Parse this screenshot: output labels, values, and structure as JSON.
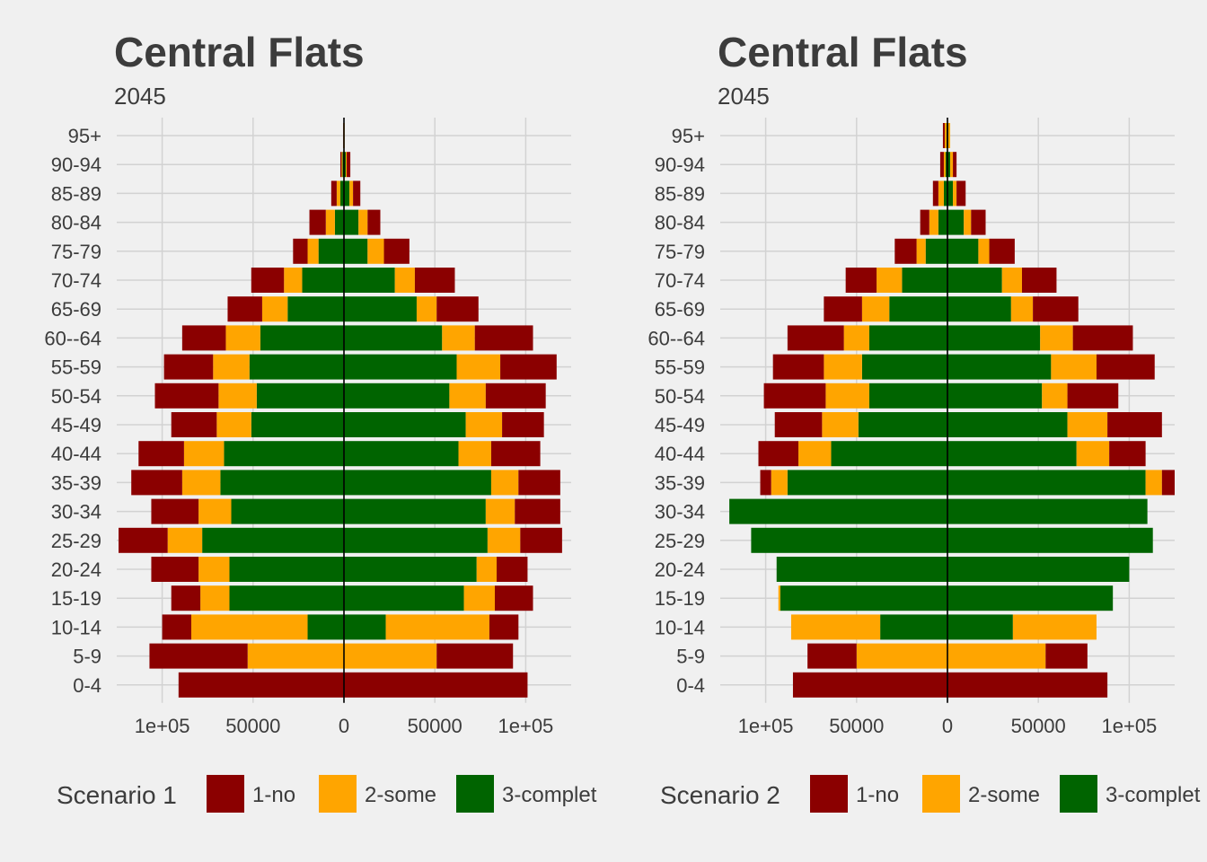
{
  "colors": {
    "background": "#f0f0f0",
    "grid": "#d2d2d2",
    "text": "#3c3c3c",
    "zero_line": "#000000",
    "1-no": "#8b0000",
    "2-some": "#ffa500",
    "3-complet": "#006400"
  },
  "chart_data": [
    {
      "type": "bar",
      "orientation": "horizontal-diverging",
      "title": "Central Flats",
      "subtitle": "2045",
      "legend_title": "Scenario 1",
      "legend_position": "bottom",
      "grid": true,
      "xlim": [
        -125000,
        125000
      ],
      "x_ticks": [
        -100000,
        -50000,
        0,
        50000,
        100000
      ],
      "x_tick_labels": [
        "1e+05",
        "50000",
        "0",
        "50000",
        "1e+05"
      ],
      "categories": [
        "0-4",
        "5-9",
        "10-14",
        "15-19",
        "20-24",
        "25-29",
        "30-34",
        "35-39",
        "40-44",
        "45-49",
        "50-54",
        "55-59",
        "60--64",
        "65-69",
        "70-74",
        "75-79",
        "80-84",
        "85-89",
        "90-94",
        "95+"
      ],
      "series": [
        {
          "name": "3-complet",
          "color": "#006400",
          "left": [
            0,
            0,
            20000,
            63000,
            63000,
            78000,
            62000,
            68000,
            66000,
            51000,
            48000,
            52000,
            46000,
            31000,
            23000,
            14000,
            5000,
            2000,
            800,
            200
          ],
          "right": [
            0,
            0,
            23000,
            66000,
            73000,
            79000,
            78000,
            81000,
            63000,
            67000,
            58000,
            62000,
            54000,
            40000,
            28000,
            13000,
            8000,
            3000,
            1000,
            200
          ]
        },
        {
          "name": "2-some",
          "color": "#ffa500",
          "left": [
            0,
            53000,
            64000,
            16000,
            17000,
            19000,
            18000,
            21000,
            22000,
            19000,
            21000,
            20000,
            19000,
            14000,
            10000,
            6000,
            5000,
            2000,
            500,
            200
          ],
          "right": [
            0,
            51000,
            57000,
            17000,
            11000,
            18000,
            16000,
            15000,
            18000,
            20000,
            20000,
            24000,
            18000,
            11000,
            11000,
            9000,
            5000,
            2000,
            500,
            200
          ]
        },
        {
          "name": "1-no",
          "color": "#8b0000",
          "left": [
            91000,
            54000,
            16000,
            16000,
            26000,
            27000,
            26000,
            28000,
            25000,
            25000,
            35000,
            27000,
            24000,
            19000,
            18000,
            8000,
            9000,
            3000,
            700,
            100
          ],
          "right": [
            101000,
            42000,
            16000,
            21000,
            17000,
            23000,
            25000,
            23000,
            27000,
            23000,
            33000,
            31000,
            32000,
            23000,
            22000,
            14000,
            7000,
            4000,
            2000,
            0
          ]
        }
      ]
    },
    {
      "type": "bar",
      "orientation": "horizontal-diverging",
      "title": "Central Flats",
      "subtitle": "2045",
      "legend_title": "Scenario 2",
      "legend_position": "bottom",
      "grid": true,
      "xlim": [
        -125000,
        125000
      ],
      "x_ticks": [
        -100000,
        -50000,
        0,
        50000,
        100000
      ],
      "x_tick_labels": [
        "1e+05",
        "50000",
        "0",
        "50000",
        "1e+05"
      ],
      "categories": [
        "0-4",
        "5-9",
        "10-14",
        "15-19",
        "20-24",
        "25-29",
        "30-34",
        "35-39",
        "40-44",
        "45-49",
        "50-54",
        "55-59",
        "60--64",
        "65-69",
        "70-74",
        "75-79",
        "80-84",
        "85-89",
        "90-94",
        "95+"
      ],
      "series": [
        {
          "name": "3-complet",
          "color": "#006400",
          "left": [
            0,
            0,
            37000,
            92000,
            94000,
            108000,
            120000,
            88000,
            64000,
            49000,
            43000,
            47000,
            43000,
            32000,
            25000,
            12000,
            5000,
            2000,
            1000,
            500
          ],
          "right": [
            0,
            0,
            36000,
            91000,
            100000,
            113000,
            110000,
            109000,
            71000,
            66000,
            52000,
            57000,
            51000,
            35000,
            30000,
            17000,
            9000,
            3000,
            1500,
            500
          ]
        },
        {
          "name": "2-some",
          "color": "#ffa500",
          "left": [
            0,
            50000,
            49000,
            1000,
            0,
            0,
            0,
            9000,
            18000,
            20000,
            24000,
            21000,
            14000,
            15000,
            14000,
            5000,
            5000,
            3000,
            1000,
            1000
          ],
          "right": [
            0,
            54000,
            46000,
            0,
            0,
            0,
            0,
            9000,
            18000,
            22000,
            14000,
            25000,
            18000,
            12000,
            11000,
            6000,
            4000,
            2000,
            1500,
            1000
          ]
        },
        {
          "name": "1-no",
          "color": "#8b0000",
          "left": [
            85000,
            27000,
            0,
            0,
            0,
            0,
            0,
            6000,
            22000,
            26000,
            34000,
            28000,
            31000,
            21000,
            17000,
            12000,
            5000,
            3000,
            2000,
            1000
          ],
          "right": [
            88000,
            23000,
            0,
            0,
            0,
            0,
            0,
            7000,
            20000,
            30000,
            28000,
            32000,
            33000,
            25000,
            19000,
            14000,
            8000,
            5000,
            2000,
            0
          ]
        }
      ]
    }
  ]
}
